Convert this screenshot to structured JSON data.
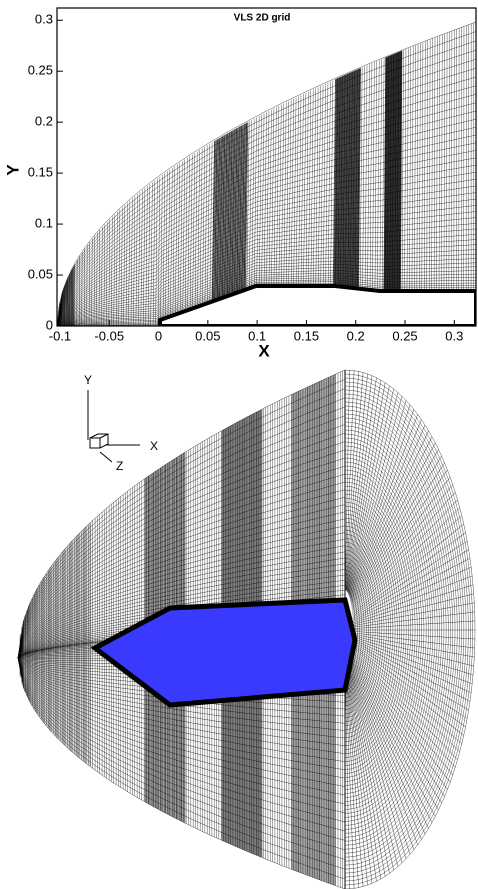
{
  "chart_data": {
    "type": "mesh",
    "title": "VLS 2D grid",
    "x_label": "X",
    "y_label": "Y",
    "xlim": [
      -0.103,
      0.322
    ],
    "xticks": [
      -0.1,
      -0.05,
      0,
      0.05,
      0.1,
      0.15,
      0.2,
      0.25,
      0.3
    ],
    "ylim": [
      0,
      0.312
    ],
    "yticks": [
      0,
      0.05,
      0.1,
      0.15,
      0.2,
      0.25,
      0.3
    ]
  },
  "axes_triad": {
    "y": "Y",
    "x": "X",
    "z": "Z"
  }
}
